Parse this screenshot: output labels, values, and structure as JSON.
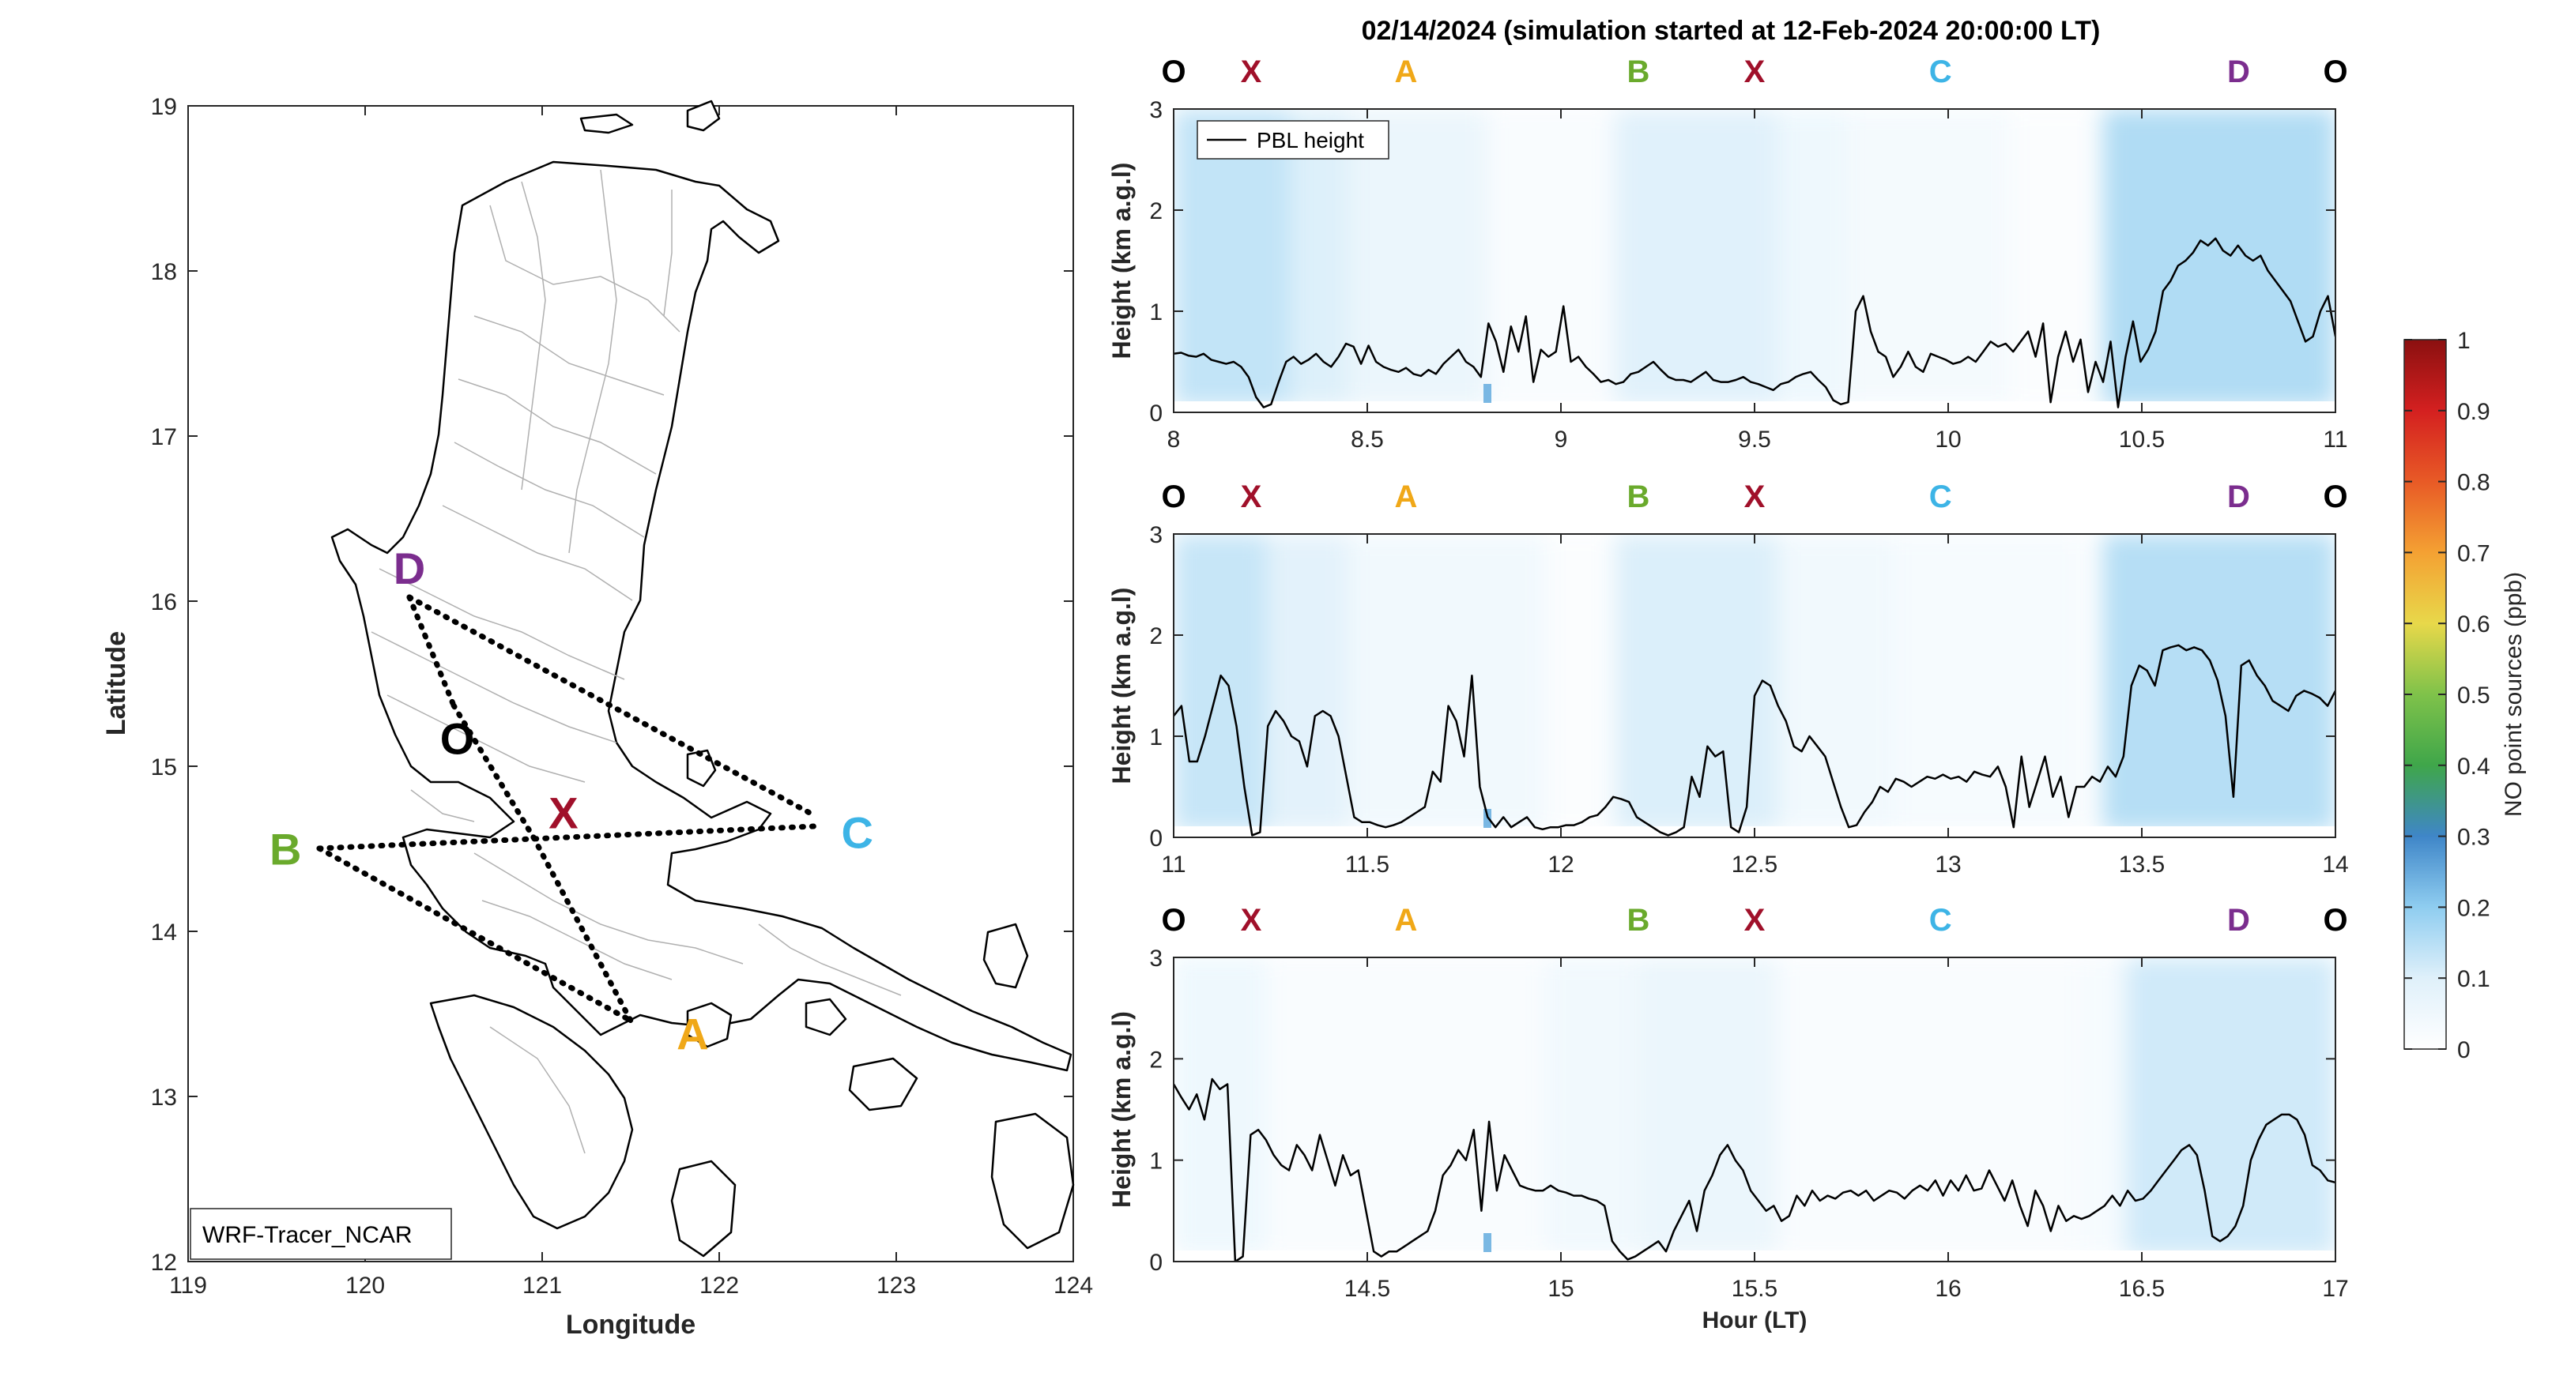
{
  "figure": {
    "title": "02/14/2024 (simulation started at 12-Feb-2024 20:00:00 LT)"
  },
  "map": {
    "xlabel": "Longitude",
    "ylabel": "Latitude",
    "xlim": [
      119,
      124
    ],
    "ylim": [
      12,
      19
    ],
    "xticks": [
      "119",
      "120",
      "121",
      "122",
      "123",
      "124"
    ],
    "yticks": [
      "12",
      "13",
      "14",
      "15",
      "16",
      "17",
      "18",
      "19"
    ],
    "label_box": "WRF-Tracer_NCAR",
    "route_points": [
      {
        "id": "D",
        "lon": 120.25,
        "lat": 16.05,
        "color": "#7b2d8e"
      },
      {
        "id": "O",
        "lon": 120.5,
        "lat": 15.1,
        "color": "#000000"
      },
      {
        "id": "X",
        "lon": 121.05,
        "lat": 14.6,
        "color": "#a0102a"
      },
      {
        "id": "C",
        "lon": 122.6,
        "lat": 14.6,
        "color": "#3db4e6"
      },
      {
        "id": "B",
        "lon": 119.75,
        "lat": 14.5,
        "color": "#6aaa2c"
      },
      {
        "id": "A",
        "lon": 121.75,
        "lat": 13.4,
        "color": "#f0a818"
      }
    ],
    "point_labels": [
      {
        "text": "D",
        "lon": 120.25,
        "lat": 16.2,
        "color": "#7b2d8e"
      },
      {
        "text": "O",
        "lon": 120.52,
        "lat": 15.17,
        "color": "#000000"
      },
      {
        "text": "X",
        "lon": 121.12,
        "lat": 14.72,
        "color": "#a0102a"
      },
      {
        "text": "C",
        "lon": 122.78,
        "lat": 14.6,
        "color": "#3db4e6"
      },
      {
        "text": "B",
        "lon": 119.55,
        "lat": 14.5,
        "color": "#6aaa2c"
      },
      {
        "text": "A",
        "lon": 121.85,
        "lat": 13.38,
        "color": "#f0a818"
      }
    ]
  },
  "legend": {
    "entry": "PBL height"
  },
  "colorbar": {
    "label": "NO point sources (ppb)",
    "ticks": [
      "0",
      "0.1",
      "0.2",
      "0.3",
      "0.4",
      "0.5",
      "0.6",
      "0.7",
      "0.8",
      "0.9",
      "1"
    ]
  },
  "chart_data": [
    {
      "type": "line",
      "series": [
        {
          "name": "PBL height",
          "x_start": 8,
          "x_end": 11,
          "values": [
            0.58,
            0.59,
            0.56,
            0.55,
            0.58,
            0.52,
            0.5,
            0.48,
            0.5,
            0.45,
            0.35,
            0.15,
            0.05,
            0.08,
            0.3,
            0.5,
            0.55,
            0.48,
            0.52,
            0.58,
            0.5,
            0.45,
            0.55,
            0.68,
            0.65,
            0.48,
            0.66,
            0.5,
            0.45,
            0.42,
            0.4,
            0.44,
            0.38,
            0.36,
            0.42,
            0.38,
            0.48,
            0.55,
            0.62,
            0.5,
            0.45,
            0.35,
            0.88,
            0.7,
            0.4,
            0.85,
            0.6,
            0.95,
            0.3,
            0.62,
            0.55,
            0.6,
            1.05,
            0.5,
            0.55,
            0.45,
            0.38,
            0.3,
            0.32,
            0.28,
            0.3,
            0.38,
            0.4,
            0.45,
            0.5,
            0.42,
            0.35,
            0.32,
            0.32,
            0.3,
            0.35,
            0.4,
            0.32,
            0.3,
            0.3,
            0.32,
            0.35,
            0.3,
            0.28,
            0.25,
            0.22,
            0.28,
            0.3,
            0.35,
            0.38,
            0.4,
            0.32,
            0.25,
            0.12,
            0.08,
            0.1,
            1.0,
            1.15,
            0.8,
            0.6,
            0.55,
            0.35,
            0.45,
            0.6,
            0.45,
            0.4,
            0.58,
            0.55,
            0.52,
            0.48,
            0.5,
            0.55,
            0.5,
            0.6,
            0.7,
            0.65,
            0.68,
            0.6,
            0.7,
            0.8,
            0.55,
            0.88,
            0.1,
            0.55,
            0.8,
            0.5,
            0.72,
            0.2,
            0.5,
            0.3,
            0.7,
            0.05,
            0.55,
            0.9,
            0.5,
            0.62,
            0.8,
            1.2,
            1.3,
            1.45,
            1.5,
            1.58,
            1.7,
            1.65,
            1.72,
            1.6,
            1.55,
            1.65,
            1.55,
            1.5,
            1.55,
            1.4,
            1.3,
            1.2,
            1.1,
            0.9,
            0.7,
            0.75,
            1.0,
            1.15,
            0.75
          ]
        }
      ],
      "xlim": [
        8,
        11
      ],
      "ylim": [
        0,
        3
      ],
      "xticks": [
        8,
        8.5,
        9,
        9.5,
        10,
        10.5,
        11
      ],
      "xtick_labels": [
        "8",
        "8.5",
        "9",
        "9.5",
        "10",
        "10.5",
        "11"
      ],
      "yticks": [
        0,
        1,
        2,
        3
      ],
      "ylabel": "Height (km a.g.l)",
      "xlabel": "",
      "location_labels": [
        {
          "text": "O",
          "x": 8.0,
          "color": "#000000"
        },
        {
          "text": "X",
          "x": 8.2,
          "color": "#a0102a"
        },
        {
          "text": "A",
          "x": 8.6,
          "color": "#f0a818"
        },
        {
          "text": "B",
          "x": 9.2,
          "color": "#6aaa2c"
        },
        {
          "text": "X",
          "x": 9.5,
          "color": "#a0102a"
        },
        {
          "text": "C",
          "x": 9.98,
          "color": "#3db4e6"
        },
        {
          "text": "D",
          "x": 10.75,
          "color": "#7b2d8e"
        },
        {
          "text": "O",
          "x": 11.0,
          "color": "#000000"
        }
      ]
    },
    {
      "type": "line",
      "series": [
        {
          "name": "PBL height",
          "x_start": 11,
          "x_end": 14,
          "values": [
            1.2,
            1.3,
            0.75,
            0.75,
            1.0,
            1.3,
            1.6,
            1.5,
            1.1,
            0.5,
            0.02,
            0.05,
            1.1,
            1.25,
            1.15,
            1.0,
            0.95,
            0.7,
            1.2,
            1.25,
            1.2,
            1.0,
            0.6,
            0.2,
            0.15,
            0.15,
            0.12,
            0.1,
            0.12,
            0.15,
            0.2,
            0.25,
            0.3,
            0.65,
            0.55,
            1.3,
            1.15,
            0.8,
            1.6,
            0.5,
            0.2,
            0.1,
            0.2,
            0.1,
            0.15,
            0.2,
            0.1,
            0.08,
            0.1,
            0.1,
            0.12,
            0.12,
            0.15,
            0.2,
            0.22,
            0.3,
            0.4,
            0.38,
            0.35,
            0.2,
            0.15,
            0.1,
            0.05,
            0.02,
            0.05,
            0.1,
            0.6,
            0.4,
            0.9,
            0.8,
            0.85,
            0.1,
            0.05,
            0.3,
            1.4,
            1.55,
            1.5,
            1.3,
            1.15,
            0.9,
            0.85,
            1.0,
            0.9,
            0.8,
            0.55,
            0.3,
            0.1,
            0.12,
            0.25,
            0.35,
            0.5,
            0.45,
            0.58,
            0.55,
            0.5,
            0.55,
            0.6,
            0.58,
            0.62,
            0.58,
            0.6,
            0.55,
            0.65,
            0.62,
            0.6,
            0.7,
            0.5,
            0.1,
            0.8,
            0.3,
            0.55,
            0.8,
            0.4,
            0.6,
            0.2,
            0.5,
            0.5,
            0.6,
            0.55,
            0.7,
            0.6,
            0.8,
            1.5,
            1.7,
            1.65,
            1.5,
            1.85,
            1.88,
            1.9,
            1.85,
            1.88,
            1.85,
            1.75,
            1.55,
            1.2,
            0.4,
            1.7,
            1.75,
            1.6,
            1.5,
            1.35,
            1.3,
            1.25,
            1.4,
            1.45,
            1.42,
            1.38,
            1.3,
            1.45
          ]
        }
      ],
      "xlim": [
        11,
        14
      ],
      "ylim": [
        0,
        3
      ],
      "xticks": [
        11,
        11.5,
        12,
        12.5,
        13,
        13.5,
        14
      ],
      "xtick_labels": [
        "11",
        "11.5",
        "12",
        "12.5",
        "13",
        "13.5",
        "14"
      ],
      "yticks": [
        0,
        1,
        2,
        3
      ],
      "ylabel": "Height (km a.g.l)",
      "xlabel": "",
      "location_labels": [
        {
          "text": "O",
          "x": 11.0,
          "color": "#000000"
        },
        {
          "text": "X",
          "x": 11.2,
          "color": "#a0102a"
        },
        {
          "text": "A",
          "x": 11.6,
          "color": "#f0a818"
        },
        {
          "text": "B",
          "x": 12.2,
          "color": "#6aaa2c"
        },
        {
          "text": "X",
          "x": 12.5,
          "color": "#a0102a"
        },
        {
          "text": "C",
          "x": 12.98,
          "color": "#3db4e6"
        },
        {
          "text": "D",
          "x": 13.75,
          "color": "#7b2d8e"
        },
        {
          "text": "O",
          "x": 14.0,
          "color": "#000000"
        }
      ]
    },
    {
      "type": "line",
      "series": [
        {
          "name": "PBL height",
          "x_start": 14,
          "x_end": 17,
          "values": [
            1.75,
            1.62,
            1.5,
            1.65,
            1.4,
            1.8,
            1.7,
            1.75,
            0.0,
            0.05,
            1.25,
            1.3,
            1.2,
            1.05,
            0.95,
            0.9,
            1.15,
            1.05,
            0.9,
            1.25,
            1.0,
            0.75,
            1.05,
            0.85,
            0.9,
            0.5,
            0.1,
            0.05,
            0.1,
            0.1,
            0.15,
            0.2,
            0.25,
            0.3,
            0.5,
            0.85,
            0.95,
            1.1,
            1.0,
            1.3,
            0.5,
            1.38,
            0.7,
            1.05,
            0.9,
            0.75,
            0.72,
            0.7,
            0.7,
            0.75,
            0.7,
            0.68,
            0.65,
            0.65,
            0.62,
            0.6,
            0.55,
            0.2,
            0.1,
            0.02,
            0.05,
            0.1,
            0.15,
            0.2,
            0.1,
            0.3,
            0.45,
            0.6,
            0.3,
            0.7,
            0.85,
            1.05,
            1.15,
            1.0,
            0.9,
            0.7,
            0.6,
            0.5,
            0.55,
            0.4,
            0.45,
            0.65,
            0.55,
            0.7,
            0.6,
            0.65,
            0.62,
            0.68,
            0.7,
            0.65,
            0.7,
            0.6,
            0.65,
            0.7,
            0.68,
            0.62,
            0.7,
            0.75,
            0.7,
            0.8,
            0.65,
            0.8,
            0.7,
            0.85,
            0.7,
            0.72,
            0.9,
            0.75,
            0.6,
            0.8,
            0.55,
            0.35,
            0.7,
            0.55,
            0.3,
            0.55,
            0.4,
            0.45,
            0.42,
            0.45,
            0.5,
            0.55,
            0.65,
            0.55,
            0.7,
            0.6,
            0.62,
            0.7,
            0.8,
            0.9,
            1.0,
            1.1,
            1.15,
            1.05,
            0.7,
            0.25,
            0.2,
            0.25,
            0.35,
            0.55,
            1.0,
            1.2,
            1.35,
            1.4,
            1.45,
            1.45,
            1.4,
            1.25,
            0.95,
            0.9,
            0.8,
            0.78
          ]
        }
      ],
      "xlim": [
        14,
        17
      ],
      "ylim": [
        0,
        3
      ],
      "xticks": [
        14.5,
        15,
        15.5,
        16,
        16.5,
        17
      ],
      "xtick_labels": [
        "14.5",
        "15",
        "15.5",
        "16",
        "16.5",
        "17"
      ],
      "yticks": [
        0,
        1,
        2,
        3
      ],
      "ylabel": "Height (km a.g.l)",
      "xlabel": "Hour (LT)",
      "location_labels": [
        {
          "text": "O",
          "x": 14.0,
          "color": "#000000"
        },
        {
          "text": "X",
          "x": 14.2,
          "color": "#a0102a"
        },
        {
          "text": "A",
          "x": 14.6,
          "color": "#f0a818"
        },
        {
          "text": "B",
          "x": 15.2,
          "color": "#6aaa2c"
        },
        {
          "text": "X",
          "x": 15.5,
          "color": "#a0102a"
        },
        {
          "text": "C",
          "x": 15.98,
          "color": "#3db4e6"
        },
        {
          "text": "D",
          "x": 16.75,
          "color": "#7b2d8e"
        },
        {
          "text": "O",
          "x": 17.0,
          "color": "#000000"
        }
      ]
    }
  ]
}
